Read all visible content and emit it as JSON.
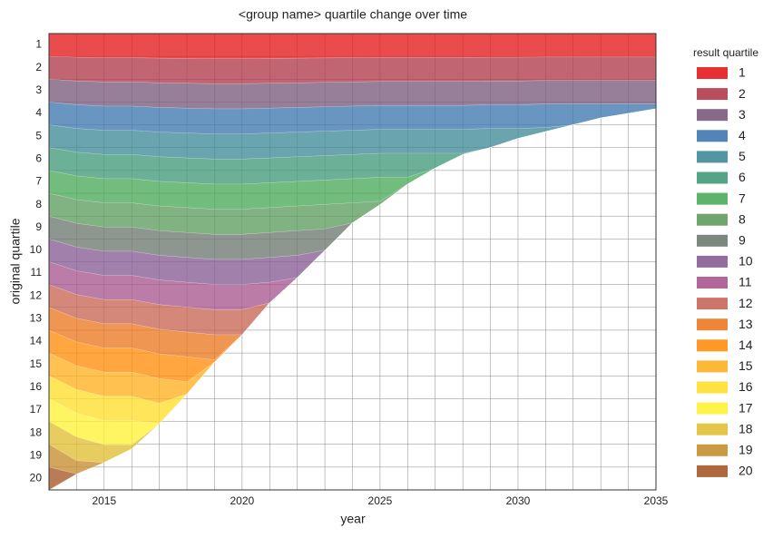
{
  "chart_data": {
    "type": "stacked_area",
    "title": "<group name> quartile change over time",
    "x_label": "year",
    "y_label": "original quartile",
    "legend_title": "result quartile",
    "legend_position": "right outside",
    "x": [
      2013,
      2014,
      2015,
      2016,
      2017,
      2018,
      2019,
      2020,
      2021,
      2022,
      2023,
      2024,
      2025,
      2026,
      2027,
      2028,
      2029,
      2030,
      2031,
      2032,
      2033,
      2034,
      2035
    ],
    "xlim": [
      2013,
      2035
    ],
    "xticks": [
      2015,
      2020,
      2025,
      2030,
      2035
    ],
    "xgrid": [
      2013,
      2014,
      2015,
      2016,
      2017,
      2018,
      2019,
      2020,
      2021,
      2022,
      2023,
      2024,
      2025,
      2026,
      2027,
      2028,
      2029,
      2030,
      2031,
      2032,
      2033,
      2034,
      2035
    ],
    "ylim": [
      20,
      0
    ],
    "yticks": [
      {
        "value": 0.5,
        "label": "1"
      },
      {
        "value": 1.5,
        "label": "2"
      },
      {
        "value": 2.5,
        "label": "3"
      },
      {
        "value": 3.5,
        "label": "4"
      },
      {
        "value": 4.5,
        "label": "5"
      },
      {
        "value": 5.5,
        "label": "6"
      },
      {
        "value": 6.5,
        "label": "7"
      },
      {
        "value": 7.5,
        "label": "8"
      },
      {
        "value": 8.5,
        "label": "9"
      },
      {
        "value": 9.5,
        "label": "10"
      },
      {
        "value": 10.5,
        "label": "11"
      },
      {
        "value": 11.5,
        "label": "12"
      },
      {
        "value": 12.5,
        "label": "13"
      },
      {
        "value": 13.5,
        "label": "14"
      },
      {
        "value": 14.5,
        "label": "15"
      },
      {
        "value": 15.5,
        "label": "16"
      },
      {
        "value": 16.5,
        "label": "17"
      },
      {
        "value": 17.5,
        "label": "18"
      },
      {
        "value": 18.5,
        "label": "19"
      },
      {
        "value": 19.5,
        "label": "20"
      }
    ],
    "ygrid": [
      0,
      1,
      2,
      3,
      4,
      5,
      6,
      7,
      8,
      9,
      10,
      11,
      12,
      13,
      14,
      15,
      16,
      17,
      18,
      19,
      20
    ],
    "grid": true,
    "series": [
      {
        "name": "1",
        "color": "#e41a1c",
        "values": [
          1,
          1.04,
          1.06,
          1.06,
          1.08,
          1.09,
          1.1,
          1.1,
          1.09,
          1.08,
          1.07,
          1.06,
          1.05,
          1.05,
          1.05,
          1.05,
          1.04,
          1.04,
          1.03,
          1.03,
          1.03,
          1.03,
          1.03
        ]
      },
      {
        "name": "2",
        "color": "#b03a4a",
        "values": [
          1,
          1.04,
          1.06,
          1.06,
          1.08,
          1.09,
          1.1,
          1.1,
          1.09,
          1.08,
          1.07,
          1.06,
          1.05,
          1.05,
          1.05,
          1.05,
          1.04,
          1.04,
          1.03,
          1.03,
          1.03,
          1.03,
          1.03
        ]
      },
      {
        "name": "3",
        "color": "#7a5a7c",
        "values": [
          1,
          1.04,
          1.06,
          1.06,
          1.08,
          1.09,
          1.1,
          1.1,
          1.09,
          1.08,
          1.07,
          1.06,
          1.05,
          1.05,
          1.05,
          1.05,
          1.04,
          1.04,
          1.03,
          1.03,
          1.03,
          1.03,
          1.03
        ]
      },
      {
        "name": "4",
        "color": "#3f77b0",
        "values": [
          1,
          1.04,
          1.06,
          1.06,
          1.08,
          1.09,
          1.1,
          1.1,
          1.09,
          1.08,
          1.07,
          1.06,
          1.05,
          1.05,
          1.05,
          1.05,
          1.04,
          1.04,
          1.03,
          0.91,
          0.61,
          0.41,
          0.21
        ]
      },
      {
        "name": "5",
        "color": "#3f8a99",
        "values": [
          1,
          1.04,
          1.06,
          1.06,
          1.08,
          1.09,
          1.1,
          1.1,
          1.09,
          1.08,
          1.07,
          1.06,
          1.05,
          1.05,
          1.05,
          1.05,
          0.84,
          0.44,
          0.18,
          0,
          0,
          0,
          0
        ]
      },
      {
        "name": "6",
        "color": "#429a7a",
        "values": [
          1,
          1.04,
          1.06,
          1.06,
          1.08,
          1.09,
          1.1,
          1.1,
          1.09,
          1.08,
          1.07,
          1.06,
          1.05,
          1.05,
          0.65,
          0.05,
          0,
          0,
          0,
          0,
          0,
          0,
          0
        ]
      },
      {
        "name": "7",
        "color": "#4aab59",
        "values": [
          1,
          1.04,
          1.06,
          1.06,
          1.08,
          1.09,
          1.1,
          1.1,
          1.09,
          1.08,
          1.07,
          1.06,
          1.05,
          0.3,
          0,
          0,
          0,
          0,
          0,
          0,
          0,
          0,
          0
        ]
      },
      {
        "name": "8",
        "color": "#5e9c5e",
        "values": [
          1,
          1.04,
          1.06,
          1.06,
          1.08,
          1.09,
          1.1,
          1.1,
          1.09,
          1.08,
          1.07,
          0.88,
          0.15,
          0,
          0,
          0,
          0,
          0,
          0,
          0,
          0,
          0,
          0
        ]
      },
      {
        "name": "9",
        "color": "#6e7a70",
        "values": [
          1,
          1.04,
          1.06,
          1.06,
          1.08,
          1.09,
          1.1,
          1.1,
          1.09,
          1.08,
          0.94,
          0,
          0,
          0,
          0,
          0,
          0,
          0,
          0,
          0,
          0,
          0,
          0
        ]
      },
      {
        "name": "10",
        "color": "#875d95",
        "values": [
          1,
          1.04,
          1.06,
          1.06,
          1.08,
          1.09,
          1.1,
          1.1,
          1.09,
          0.98,
          0,
          0,
          0,
          0,
          0,
          0,
          0,
          0,
          0,
          0,
          0,
          0,
          0
        ]
      },
      {
        "name": "11",
        "color": "#a9578f",
        "values": [
          1,
          1.04,
          1.06,
          1.06,
          1.08,
          1.09,
          1.1,
          1.1,
          0.9,
          0,
          0,
          0,
          0,
          0,
          0,
          0,
          0,
          0,
          0,
          0,
          0,
          0,
          0
        ]
      },
      {
        "name": "12",
        "color": "#c86655",
        "values": [
          1,
          1.04,
          1.06,
          1.06,
          1.08,
          1.09,
          1.1,
          1.1,
          0,
          0,
          0,
          0,
          0,
          0,
          0,
          0,
          0,
          0,
          0,
          0,
          0,
          0,
          0
        ]
      },
      {
        "name": "13",
        "color": "#ec7822",
        "values": [
          1,
          1.04,
          1.06,
          1.06,
          1.08,
          1.09,
          1.1,
          0,
          0,
          0,
          0,
          0,
          0,
          0,
          0,
          0,
          0,
          0,
          0,
          0,
          0,
          0,
          0
        ]
      },
      {
        "name": "14",
        "color": "#ff8d0c",
        "values": [
          1,
          1.04,
          1.06,
          1.06,
          1.08,
          1.09,
          0.1,
          0,
          0,
          0,
          0,
          0,
          0,
          0,
          0,
          0,
          0,
          0,
          0,
          0,
          0,
          0,
          0
        ]
      },
      {
        "name": "15",
        "color": "#ffb01f",
        "values": [
          1,
          1.04,
          1.06,
          1.06,
          1.08,
          0.54,
          0,
          0,
          0,
          0,
          0,
          0,
          0,
          0,
          0,
          0,
          0,
          0,
          0,
          0,
          0,
          0,
          0
        ]
      },
      {
        "name": "16",
        "color": "#ffde2c",
        "values": [
          1,
          1.04,
          1.06,
          1.06,
          0.9,
          0,
          0,
          0,
          0,
          0,
          0,
          0,
          0,
          0,
          0,
          0,
          0,
          0,
          0,
          0,
          0,
          0,
          0
        ]
      },
      {
        "name": "17",
        "color": "#fff134",
        "values": [
          1,
          1.04,
          1.06,
          1.06,
          0,
          0,
          0,
          0,
          0,
          0,
          0,
          0,
          0,
          0,
          0,
          0,
          0,
          0,
          0,
          0,
          0,
          0,
          0
        ]
      },
      {
        "name": "18",
        "color": "#e0bf33",
        "values": [
          1,
          1.04,
          0.78,
          0.18,
          0,
          0,
          0,
          0,
          0,
          0,
          0,
          0,
          0,
          0,
          0,
          0,
          0,
          0,
          0,
          0,
          0,
          0,
          0
        ]
      },
      {
        "name": "19",
        "color": "#c58e30",
        "values": [
          1,
          0.58,
          0,
          0,
          0,
          0,
          0,
          0,
          0,
          0,
          0,
          0,
          0,
          0,
          0,
          0,
          0,
          0,
          0,
          0,
          0,
          0,
          0
        ]
      },
      {
        "name": "20",
        "color": "#a65628",
        "values": [
          1,
          0,
          0,
          0,
          0,
          0,
          0,
          0,
          0,
          0,
          0,
          0,
          0,
          0,
          0,
          0,
          0,
          0,
          0,
          0,
          0,
          0,
          0
        ]
      }
    ]
  }
}
